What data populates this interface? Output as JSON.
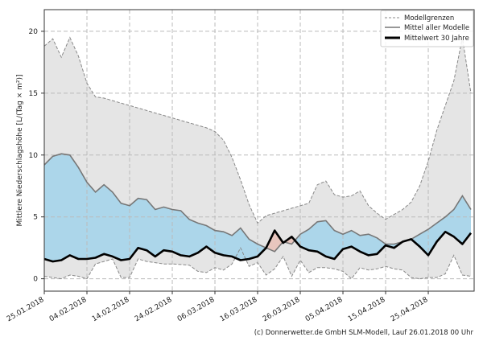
{
  "chart_data": {
    "type": "area",
    "title": "",
    "xlabel": "",
    "ylabel": "Mittlere Niederschlagshöhe [L/(Tag × m²)]",
    "x_unit": "days since 25.01.2018",
    "x": [
      0,
      2,
      4,
      6,
      8,
      10,
      12,
      14,
      16,
      18,
      20,
      22,
      24,
      26,
      28,
      30,
      32,
      34,
      36,
      38,
      40,
      42,
      44,
      46,
      48,
      50,
      52,
      54,
      56,
      58,
      60,
      62,
      64,
      66,
      68,
      70,
      72,
      74,
      76,
      78,
      80,
      82,
      84,
      86,
      88,
      90,
      92,
      94,
      96,
      98,
      100
    ],
    "xlim": [
      0,
      100.75
    ],
    "ylim": [
      -1,
      21.75
    ],
    "xticks": [
      0,
      10,
      20,
      30,
      40,
      50,
      60,
      70,
      80,
      90
    ],
    "xtick_labels": [
      "25.01.2018",
      "04.02.2018",
      "14.02.2018",
      "24.02.2018",
      "06.03.2018",
      "16.03.2018",
      "26.03.2018",
      "05.04.2018",
      "15.04.2018",
      "25.04.2018"
    ],
    "yticks": [
      0,
      5,
      10,
      15,
      20
    ],
    "ytick_labels": [
      "0",
      "5",
      "10",
      "15",
      "20"
    ],
    "grid": true,
    "legend_position": "top-right",
    "series": [
      {
        "name": "Modellgrenzen (max)",
        "style": "dashed",
        "values": [
          18.8,
          19.4,
          17.9,
          19.5,
          18.0,
          15.8,
          14.7,
          14.6,
          14.4,
          14.2,
          14.0,
          13.8,
          13.6,
          13.4,
          13.2,
          13.0,
          12.8,
          12.6,
          12.4,
          12.2,
          11.9,
          11.2,
          9.8,
          8.0,
          6.0,
          4.5,
          5.1,
          5.3,
          5.5,
          5.7,
          5.9,
          6.1,
          7.6,
          7.9,
          6.8,
          6.6,
          6.7,
          7.1,
          5.9,
          5.3,
          4.8,
          5.2,
          5.6,
          6.2,
          7.5,
          9.5,
          12.0,
          14.0,
          16.0,
          19.5,
          15.0
        ]
      },
      {
        "name": "Modellgrenzen (min)",
        "style": "dashed",
        "values": [
          0.2,
          0.1,
          0.0,
          0.3,
          0.2,
          0.0,
          1.2,
          1.4,
          1.6,
          0.1,
          0.1,
          1.6,
          1.4,
          1.3,
          1.2,
          1.2,
          1.15,
          1.1,
          0.6,
          0.5,
          0.9,
          0.7,
          1.2,
          2.5,
          1.0,
          1.3,
          0.3,
          0.8,
          1.8,
          0.2,
          1.5,
          0.5,
          0.9,
          0.9,
          0.8,
          0.6,
          0.0,
          0.9,
          0.7,
          0.8,
          1.0,
          0.8,
          0.7,
          0.1,
          0.0,
          0.1,
          0.1,
          0.4,
          1.9,
          0.3,
          0.2
        ]
      },
      {
        "name": "Mittel aller Modelle",
        "style": "solid",
        "values": [
          9.2,
          9.9,
          10.1,
          10.0,
          9.0,
          7.8,
          7.0,
          7.6,
          7.0,
          6.1,
          5.9,
          6.5,
          6.4,
          5.6,
          5.8,
          5.6,
          5.5,
          4.8,
          4.5,
          4.3,
          3.9,
          3.8,
          3.5,
          4.1,
          3.2,
          2.8,
          2.5,
          2.2,
          3.0,
          2.8,
          3.6,
          4.0,
          4.6,
          4.7,
          3.9,
          3.6,
          3.9,
          3.5,
          3.6,
          3.3,
          2.8,
          2.8,
          3.0,
          3.2,
          3.6,
          4.0,
          4.5,
          5.0,
          5.6,
          6.7,
          5.6
        ]
      },
      {
        "name": "Mittelwert 30 Jahre",
        "style": "thick",
        "values": [
          1.6,
          1.4,
          1.5,
          1.9,
          1.6,
          1.6,
          1.7,
          2.0,
          1.8,
          1.5,
          1.6,
          2.5,
          2.3,
          1.8,
          2.3,
          2.2,
          1.9,
          1.8,
          2.1,
          2.6,
          2.1,
          1.9,
          1.8,
          1.5,
          1.6,
          1.8,
          2.5,
          3.9,
          2.9,
          3.4,
          2.6,
          2.3,
          2.2,
          1.8,
          1.6,
          2.4,
          2.6,
          2.2,
          1.9,
          2.0,
          2.7,
          2.5,
          3.0,
          3.2,
          2.6,
          1.9,
          3.0,
          3.8,
          3.4,
          2.8,
          3.7
        ]
      }
    ],
    "legend": [
      "Modellgrenzen",
      "Mittel aller Modelle",
      "Mittelwert 30 Jahre"
    ],
    "colors": {
      "range_fill": "#e5e5e5",
      "above_fill": "#acd6ea",
      "below_fill": "#e8c6be",
      "mean_line": "#777777",
      "thirty_line": "#000000",
      "bounds_line": "#888888"
    }
  },
  "footer": "(c) Donnerwetter.de GmbH SLM-Modell, Lauf 26.01.2018 00 Uhr"
}
